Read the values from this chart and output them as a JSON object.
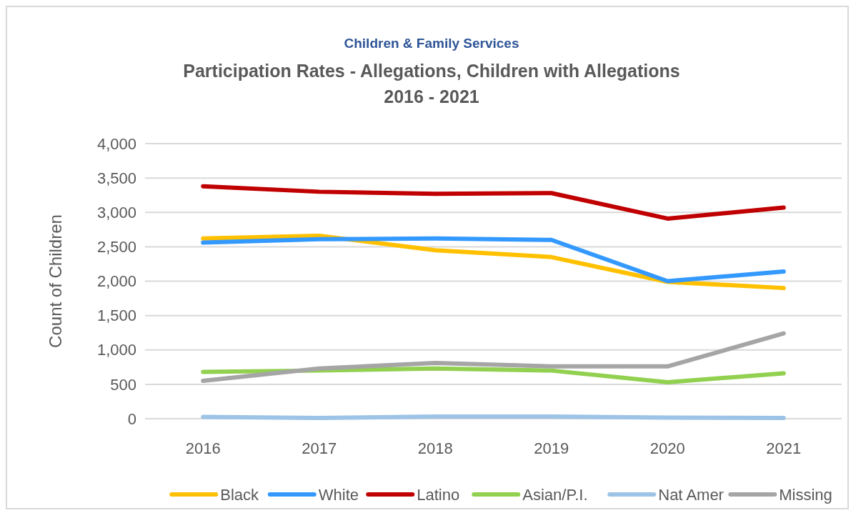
{
  "chart_data": {
    "type": "line",
    "subtitle": "Children & Family Services",
    "title": "Participation Rates - Allegations, Children with Allegations\n2016 - 2021",
    "ylabel": "Count of Children",
    "categories": [
      "2016",
      "2017",
      "2018",
      "2019",
      "2020",
      "2021"
    ],
    "series": [
      {
        "name": "Black",
        "color": "#ffc000",
        "values": [
          2620,
          2660,
          2450,
          2350,
          1990,
          1900
        ]
      },
      {
        "name": "White",
        "color": "#3399ff",
        "values": [
          2560,
          2610,
          2620,
          2600,
          2000,
          2140
        ]
      },
      {
        "name": "Latino",
        "color": "#c00000",
        "values": [
          3380,
          3300,
          3270,
          3280,
          2910,
          3070
        ]
      },
      {
        "name": "Asian/P.I.",
        "color": "#92d050",
        "values": [
          680,
          700,
          730,
          700,
          530,
          660
        ]
      },
      {
        "name": "Nat Amer",
        "color": "#9dc3e6",
        "values": [
          25,
          10,
          30,
          30,
          15,
          10
        ]
      },
      {
        "name": "Missing",
        "color": "#a5a5a5",
        "values": [
          550,
          730,
          810,
          760,
          760,
          1240
        ]
      }
    ],
    "ylim": [
      0,
      4000
    ],
    "yticks": [
      {
        "value": 0,
        "label": "0"
      },
      {
        "value": 500,
        "label": "500"
      },
      {
        "value": 1000,
        "label": "1,000"
      },
      {
        "value": 1500,
        "label": "1,500"
      },
      {
        "value": 2000,
        "label": "2,000"
      },
      {
        "value": 2500,
        "label": "2,500"
      },
      {
        "value": 3000,
        "label": "3,000"
      },
      {
        "value": 3500,
        "label": "3,500"
      },
      {
        "value": 4000,
        "label": "4,000"
      }
    ],
    "grid": "y",
    "legend": "bottom",
    "marker": "none",
    "line_style": "solid"
  }
}
